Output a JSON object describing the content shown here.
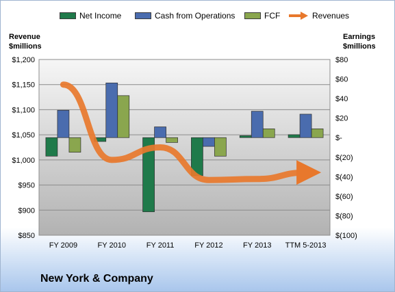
{
  "chart_data": {
    "type": "bar",
    "categories": [
      "FY 2009",
      "FY 2010",
      "FY 2011",
      "FY 2012",
      "FY 2013",
      "TTM 5-2013"
    ],
    "series": [
      {
        "name": "Net Income",
        "axis": "right",
        "values": [
          -19,
          -4,
          -76,
          -39,
          2,
          3
        ],
        "color": "#1f7a4a"
      },
      {
        "name": "Cash from Operations",
        "axis": "right",
        "values": [
          28,
          56,
          11,
          -9,
          27,
          24
        ],
        "color": "#4a6cae"
      },
      {
        "name": "FCF",
        "axis": "right",
        "values": [
          -15,
          43,
          -5,
          -19,
          9,
          9
        ],
        "color": "#8aa64e"
      },
      {
        "name": "Revenues",
        "type": "line",
        "axis": "left",
        "values": [
          1150,
          1000,
          1025,
          960,
          962,
          975
        ],
        "color": "#e8782c"
      }
    ],
    "y_left": {
      "label": "Revenue $millions",
      "ylim": [
        850,
        1200
      ],
      "ticks": [
        "$1,200",
        "$1,150",
        "$1,100",
        "$1,050",
        "$1,000",
        "$950",
        "$900",
        "$850"
      ]
    },
    "y_right": {
      "label": "Earnings $millions",
      "ylim": [
        -100,
        80
      ],
      "ticks": [
        "$80",
        "$60",
        "$40",
        "$20",
        "$-",
        "$(20)",
        "$(40)",
        "$(60)",
        "$(80)",
        "$(100)"
      ]
    },
    "grid": true,
    "legend": "top"
  },
  "legend_items": [
    "Net Income",
    "Cash from Operations",
    "FCF",
    "Revenues"
  ],
  "axis_titles": {
    "left_line1": "Revenue",
    "left_line2": "$millions",
    "right_line1": "Earnings",
    "right_line2": "$millions"
  },
  "company": "New York & Company"
}
